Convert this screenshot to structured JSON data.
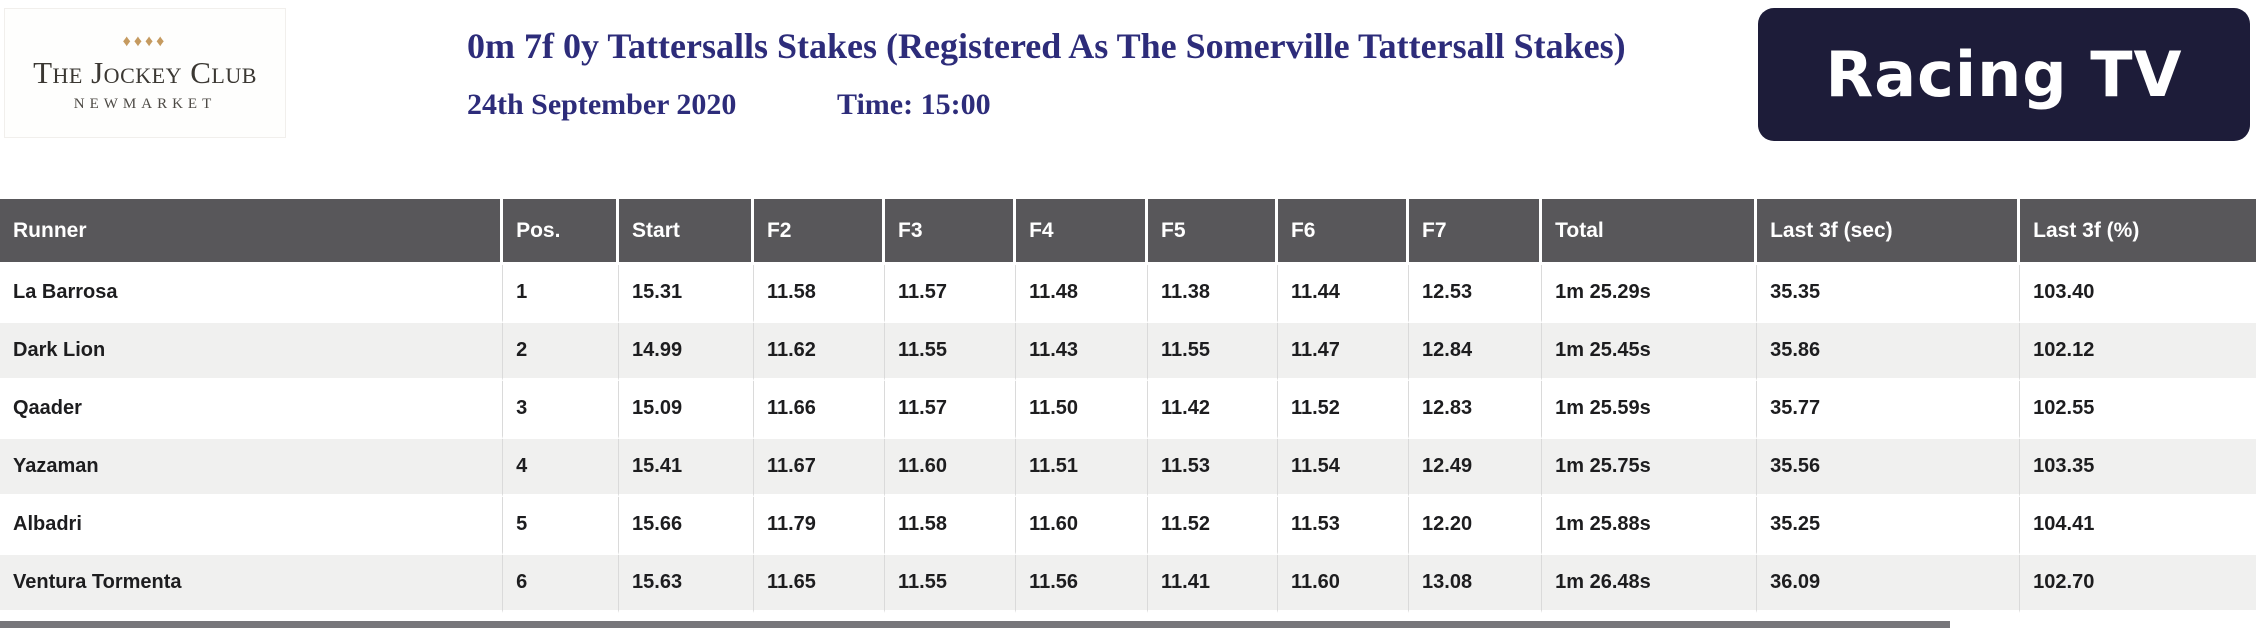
{
  "venue_logo": {
    "diamonds": "♦♦♦♦",
    "name": "The Jockey Club",
    "location": "NEWMARKET",
    "diamond_color": "#c59a5f"
  },
  "race_header": {
    "title": "0m 7f 0y Tattersalls Stakes (Registered As The Somerville Tattersall Stakes)",
    "date": "24th September 2020",
    "time": "Time: 15:00",
    "accent_color": "#2d2c7a"
  },
  "broadcaster_logo": {
    "label": "Racing TV",
    "background_color": "#1d1c39",
    "text_color": "#ffffff"
  },
  "results_table": {
    "header_bg": "#58575a",
    "header_text_color": "#ffffff",
    "row_alt_bg": "#f0f0ef",
    "columns": [
      "Runner",
      "Pos.",
      "Start",
      "F2",
      "F3",
      "F4",
      "F5",
      "F6",
      "F7",
      "Total",
      "Last 3f (sec)",
      "Last 3f (%)"
    ],
    "rows": [
      [
        "La Barrosa",
        "1",
        "15.31",
        "11.58",
        "11.57",
        "11.48",
        "11.38",
        "11.44",
        "12.53",
        "1m 25.29s",
        "35.35",
        "103.40"
      ],
      [
        "Dark Lion",
        "2",
        "14.99",
        "11.62",
        "11.55",
        "11.43",
        "11.55",
        "11.47",
        "12.84",
        "1m 25.45s",
        "35.86",
        "102.12"
      ],
      [
        "Qaader",
        "3",
        "15.09",
        "11.66",
        "11.57",
        "11.50",
        "11.42",
        "11.52",
        "12.83",
        "1m 25.59s",
        "35.77",
        "102.55"
      ],
      [
        "Yazaman",
        "4",
        "15.41",
        "11.67",
        "11.60",
        "11.51",
        "11.53",
        "11.54",
        "12.49",
        "1m 25.75s",
        "35.56",
        "103.35"
      ],
      [
        "Albadri",
        "5",
        "15.66",
        "11.79",
        "11.58",
        "11.60",
        "11.52",
        "11.53",
        "12.20",
        "1m 25.88s",
        "35.25",
        "104.41"
      ],
      [
        "Ventura Tormenta",
        "6",
        "15.63",
        "11.65",
        "11.55",
        "11.56",
        "11.41",
        "11.60",
        "13.08",
        "1m 26.48s",
        "36.09",
        "102.70"
      ]
    ]
  }
}
